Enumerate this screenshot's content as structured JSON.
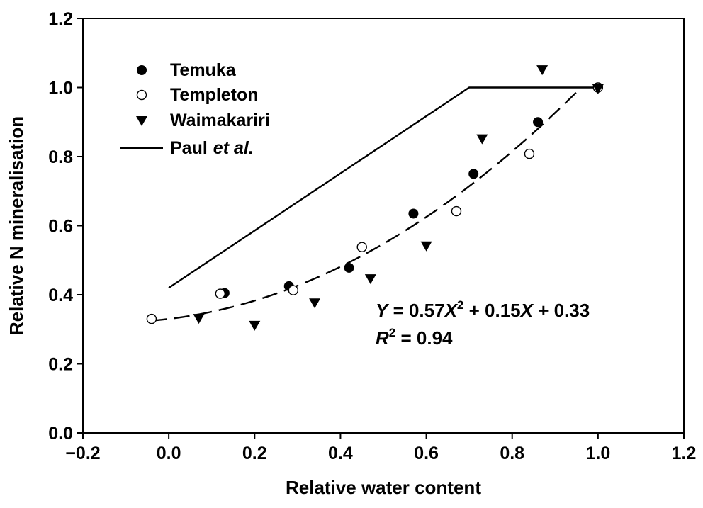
{
  "chart_data": {
    "type": "scatter",
    "title": "",
    "xlabel": "Relative water content",
    "ylabel": "Relative N mineralisation",
    "xlim": [
      -0.2,
      1.2
    ],
    "ylim": [
      0.0,
      1.2
    ],
    "xticks": [
      "−0.2",
      "0.0",
      "0.2",
      "0.4",
      "0.6",
      "0.8",
      "1.0",
      "1.2"
    ],
    "yticks": [
      "0.0",
      "0.2",
      "0.4",
      "0.6",
      "0.8",
      "1.0",
      "1.2"
    ],
    "grid": false,
    "legend_position": "top-left",
    "series": [
      {
        "name": "Temuka",
        "marker": "filled-circle",
        "points": [
          [
            0.13,
            0.405
          ],
          [
            0.28,
            0.425
          ],
          [
            0.42,
            0.478
          ],
          [
            0.57,
            0.635
          ],
          [
            0.71,
            0.75
          ],
          [
            0.86,
            0.9
          ],
          [
            1.0,
            1.0
          ]
        ]
      },
      {
        "name": "Templeton",
        "marker": "open-circle",
        "points": [
          [
            -0.04,
            0.33
          ],
          [
            0.12,
            0.403
          ],
          [
            0.29,
            0.413
          ],
          [
            0.45,
            0.538
          ],
          [
            0.67,
            0.642
          ],
          [
            0.84,
            0.808
          ],
          [
            1.0,
            1.0
          ]
        ]
      },
      {
        "name": "Waimakariri",
        "marker": "filled-triangle-down",
        "points": [
          [
            0.07,
            0.33
          ],
          [
            0.2,
            0.31
          ],
          [
            0.34,
            0.375
          ],
          [
            0.47,
            0.445
          ],
          [
            0.6,
            0.54
          ],
          [
            0.73,
            0.85
          ],
          [
            0.87,
            1.05
          ],
          [
            1.0,
            0.995
          ]
        ]
      },
      {
        "name": "Paul",
        "name_suffix": "et al.",
        "marker": "line-solid",
        "points": [
          [
            0.0,
            0.42
          ],
          [
            0.7,
            1.0
          ],
          [
            1.0,
            1.0
          ]
        ]
      }
    ],
    "fit": {
      "line_style": "dashed",
      "a": 0.57,
      "b": 0.15,
      "c": 0.33,
      "x_range": [
        -0.04,
        0.95
      ],
      "equation": {
        "y_var": "Y",
        "part1": " = 0.57",
        "x_var": "X",
        "exp": "2",
        "part2": " + 0.15",
        "part3": " + 0.33"
      },
      "r2": {
        "var": "R",
        "exp": "2",
        "text": " = 0.94"
      }
    }
  }
}
